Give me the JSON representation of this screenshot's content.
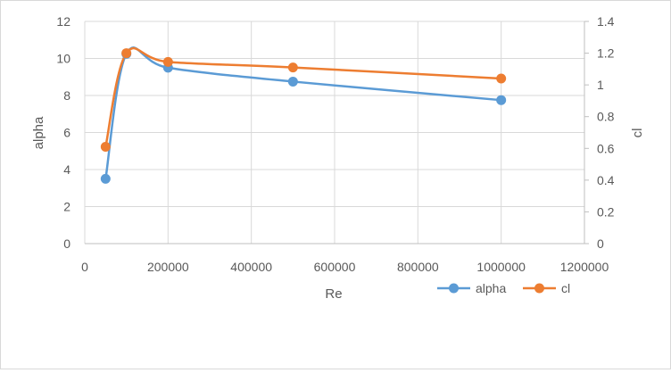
{
  "chart_data": {
    "type": "line",
    "title": "",
    "xlabel": "Re",
    "ylabel_left": "alpha",
    "ylabel_right": "cl",
    "xlim": [
      0,
      1200000
    ],
    "xticks": [
      0,
      200000,
      400000,
      600000,
      800000,
      1000000,
      1200000
    ],
    "xtick_labels": [
      "0",
      "200000",
      "400000",
      "600000",
      "800000",
      "1000000",
      "1200000"
    ],
    "ylim_left": [
      0,
      12
    ],
    "yticks_left": [
      0,
      2,
      4,
      6,
      8,
      10,
      12
    ],
    "ytick_labels_left": [
      "0",
      "2",
      "4",
      "6",
      "8",
      "10",
      "12"
    ],
    "ylim_right": [
      0,
      1.4
    ],
    "yticks_right": [
      0,
      0.2,
      0.4,
      0.6,
      0.8,
      1.0,
      1.2,
      1.4
    ],
    "ytick_labels_right": [
      "0",
      "0.2",
      "0.4",
      "0.6",
      "0.8",
      "1",
      "1.2",
      "1.4"
    ],
    "grid": true,
    "smoothed": true,
    "legend_position": "bottom-right",
    "series": [
      {
        "name": "alpha",
        "axis": "left",
        "color": "#5b9bd5",
        "x": [
          50000,
          100000,
          200000,
          500000,
          1000000
        ],
        "y": [
          3.5,
          10.25,
          9.5,
          8.75,
          7.75
        ]
      },
      {
        "name": "cl",
        "axis": "right",
        "color": "#ed7d31",
        "x": [
          50000,
          100000,
          200000,
          500000,
          1000000
        ],
        "y": [
          0.61,
          1.2,
          1.145,
          1.11,
          1.04
        ]
      }
    ]
  }
}
